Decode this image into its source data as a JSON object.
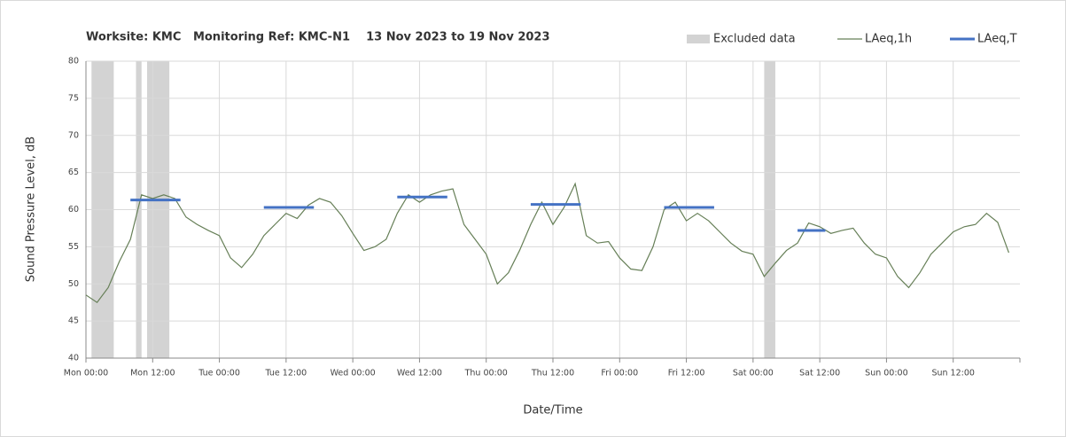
{
  "chart_data": {
    "type": "line",
    "title": "Worksite: KMC   Monitoring Ref: KMC-N1    13 Nov 2023 to 19 Nov 2023",
    "x_label": "Date/Time",
    "y_label": "Sound Pressure Level, dB",
    "xlim": [
      0,
      168
    ],
    "xticks": [
      {
        "value": 0,
        "label": "Mon 00:00"
      },
      {
        "value": 12,
        "label": "Mon 12:00"
      },
      {
        "value": 24,
        "label": "Tue 00:00"
      },
      {
        "value": 36,
        "label": "Tue 12:00"
      },
      {
        "value": 48,
        "label": "Wed 00:00"
      },
      {
        "value": 60,
        "label": "Wed 12:00"
      },
      {
        "value": 72,
        "label": "Thu 00:00"
      },
      {
        "value": 84,
        "label": "Thu 12:00"
      },
      {
        "value": 96,
        "label": "Fri 00:00"
      },
      {
        "value": 108,
        "label": "Fri 12:00"
      },
      {
        "value": 120,
        "label": "Sat 00:00"
      },
      {
        "value": 132,
        "label": "Sat 12:00"
      },
      {
        "value": 144,
        "label": "Sun 00:00"
      },
      {
        "value": 156,
        "label": "Sun 12:00"
      }
    ],
    "ylim": [
      40,
      80
    ],
    "yticks": [
      40,
      45,
      50,
      55,
      60,
      65,
      70,
      75,
      80
    ],
    "grid": true,
    "legend": "top-right",
    "excluded": {
      "name": "Excluded data",
      "color": "#d3d3d3",
      "ranges": [
        {
          "start": 1,
          "end": 5
        },
        {
          "start": 9,
          "end": 10
        },
        {
          "start": 11,
          "end": 15
        },
        {
          "start": 122,
          "end": 124
        }
      ]
    },
    "series": [
      {
        "name": "LAeq,1h",
        "color": "#667f57",
        "x": [
          0,
          2,
          4,
          6,
          8,
          10,
          12,
          14,
          16,
          18,
          20,
          22,
          24,
          26,
          28,
          30,
          32,
          34,
          36,
          38,
          40,
          42,
          44,
          46,
          48,
          50,
          52,
          54,
          56,
          58,
          60,
          62,
          64,
          66,
          68,
          70,
          72,
          74,
          76,
          78,
          80,
          82,
          84,
          86,
          88,
          90,
          92,
          94,
          96,
          98,
          100,
          102,
          104,
          106,
          108,
          110,
          112,
          114,
          116,
          118,
          120,
          122,
          124,
          126,
          128,
          130,
          132,
          134,
          136,
          138,
          140,
          142,
          144,
          146,
          148,
          150,
          152,
          154,
          156,
          158,
          160,
          162,
          164,
          166
        ],
        "values": [
          48.5,
          47.5,
          49.5,
          53,
          56,
          62,
          61.5,
          62,
          61.5,
          59,
          58,
          57.2,
          56.5,
          53.5,
          52.2,
          54,
          56.5,
          58,
          59.5,
          58.8,
          60.6,
          61.5,
          61,
          59.2,
          56.8,
          54.5,
          55,
          56,
          59.5,
          62,
          61,
          62,
          62.5,
          62.8,
          58,
          56,
          54,
          50,
          51.5,
          54.5,
          58,
          61,
          58,
          60.3,
          63.5,
          56.5,
          55.5,
          55.7,
          53.5,
          52,
          51.8,
          55,
          60,
          61,
          58.5,
          59.5,
          58.5,
          57,
          55.5,
          54.4,
          54,
          51,
          52.8,
          54.5,
          55.5,
          58.2,
          57.7,
          56.8,
          57.2,
          57.5,
          55.5,
          54,
          53.5,
          51,
          49.5,
          51.5,
          54,
          55.5,
          57,
          57.7,
          58,
          59.5,
          58.3,
          54.2
        ]
      },
      {
        "name": "LAeq,T",
        "color": "#4472c4",
        "segments": [
          {
            "x": [
              8,
              17
            ],
            "value": 61.3
          },
          {
            "x": [
              32,
              41
            ],
            "value": 60.3
          },
          {
            "x": [
              56,
              65
            ],
            "value": 61.7
          },
          {
            "x": [
              80,
              89
            ],
            "value": 60.7
          },
          {
            "x": [
              104,
              113
            ],
            "value": 60.3
          },
          {
            "x": [
              128,
              133
            ],
            "value": 57.2
          }
        ]
      }
    ]
  }
}
